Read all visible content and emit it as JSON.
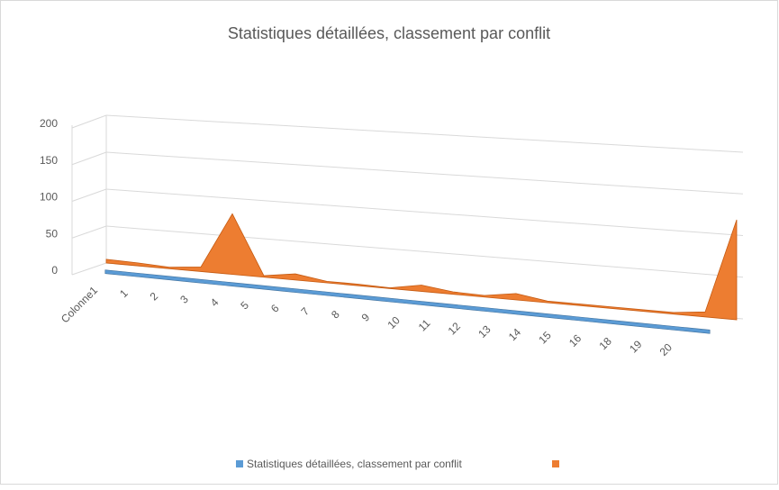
{
  "chart_data": {
    "type": "line3d",
    "title": "Statistiques détaillées, classement par conflit",
    "categories": [
      "Colonne1",
      "1",
      "2",
      "3",
      "4",
      "5",
      "6",
      "7",
      "8",
      "9",
      "10",
      "11",
      "12",
      "13",
      "14",
      "15",
      "16",
      "18",
      "19",
      "20",
      null
    ],
    "series": [
      {
        "name": "Statistiques détaillées, classement par conflit",
        "color": "#5b9bd5",
        "values": [
          0,
          0,
          0,
          0,
          0,
          0,
          0,
          0,
          0,
          0,
          0,
          0,
          0,
          0,
          0,
          0,
          0,
          0,
          0,
          0,
          0
        ]
      },
      {
        "color": "#ed7d31",
        "values": [
          5,
          4,
          2,
          6,
          80,
          2,
          8,
          2,
          2,
          1,
          8,
          3,
          2,
          8,
          2,
          2,
          2,
          2,
          2,
          6,
          120
        ]
      }
    ],
    "ylim": [
      0,
      200
    ],
    "yticks": [
      0,
      50,
      100,
      150,
      200
    ],
    "grid": true
  }
}
